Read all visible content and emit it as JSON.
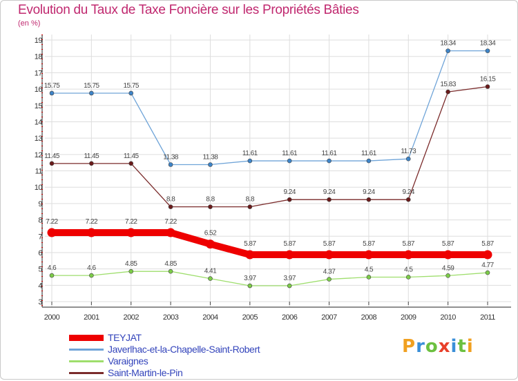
{
  "title": "Evolution du Taux de Taxe Foncière sur les Propriétés Bâties",
  "unit_label": "(en %)",
  "logo_text": "Proxiti",
  "chart_data": {
    "type": "line",
    "title": "Evolution du Taux de Taxe Foncière sur les Propriétés Bâties",
    "ylabel": "(en %)",
    "xlabel": "",
    "ylim": [
      3,
      19
    ],
    "yticks": [
      "3",
      "4",
      "5",
      "6",
      "7",
      "8",
      "9",
      "10",
      "11",
      "12",
      "13",
      "14",
      "15",
      "16",
      "17",
      "18",
      "19"
    ],
    "categories": [
      "2000",
      "2001",
      "2002",
      "2003",
      "2004",
      "2005",
      "2006",
      "2007",
      "2008",
      "2009",
      "2010",
      "2011"
    ],
    "grid": true,
    "legend_position": "bottom-left",
    "series": [
      {
        "name": "TEYJAT",
        "color": "#ee0000",
        "marker": "#ee0000",
        "emphasis": true,
        "values": [
          7.22,
          7.22,
          7.22,
          7.22,
          6.52,
          5.87,
          5.87,
          5.87,
          5.87,
          5.87,
          5.87,
          5.87
        ],
        "labels": [
          "7.22",
          "7.22",
          "7.22",
          "7.22",
          "6.52",
          "5.87",
          "5.87",
          "5.87",
          "5.87",
          "5.87",
          "5.87",
          "5.87"
        ]
      },
      {
        "name": "Javerlhac-et-la-Chapelle-Saint-Robert",
        "color": "#6fa4d8",
        "marker": "#3d84c8",
        "emphasis": false,
        "values": [
          15.75,
          15.75,
          15.75,
          11.38,
          11.38,
          11.61,
          11.61,
          11.61,
          11.61,
          11.73,
          18.34,
          18.34
        ],
        "labels": [
          "15.75",
          "15.75",
          "15.75",
          "11.38",
          "11.38",
          "11.61",
          "11.61",
          "11.61",
          "11.61",
          "11.73",
          "18.34",
          "18.34"
        ]
      },
      {
        "name": "Varaignes",
        "color": "#9ede6c",
        "marker": "#7ccc48",
        "emphasis": false,
        "values": [
          4.6,
          4.6,
          4.85,
          4.85,
          4.41,
          3.97,
          3.97,
          4.37,
          4.5,
          4.5,
          4.59,
          4.77
        ],
        "labels": [
          "4.6",
          "4.6",
          "4.85",
          "4.85",
          "4.41",
          "3.97",
          "3.97",
          "4.37",
          "4.5",
          "4.5",
          "4.59",
          "4.77"
        ]
      },
      {
        "name": "Saint-Martin-le-Pin",
        "color": "#7a2a2a",
        "marker": "#6a1a1a",
        "emphasis": false,
        "values": [
          11.45,
          11.45,
          11.45,
          8.8,
          8.8,
          8.8,
          9.24,
          9.24,
          9.24,
          9.24,
          15.83,
          16.15
        ],
        "labels": [
          "11.45",
          "11.45",
          "11.45",
          "8.8",
          "8.8",
          "8.8",
          "9.24",
          "9.24",
          "9.24",
          "9.24",
          "15.83",
          "16.15"
        ]
      }
    ]
  }
}
